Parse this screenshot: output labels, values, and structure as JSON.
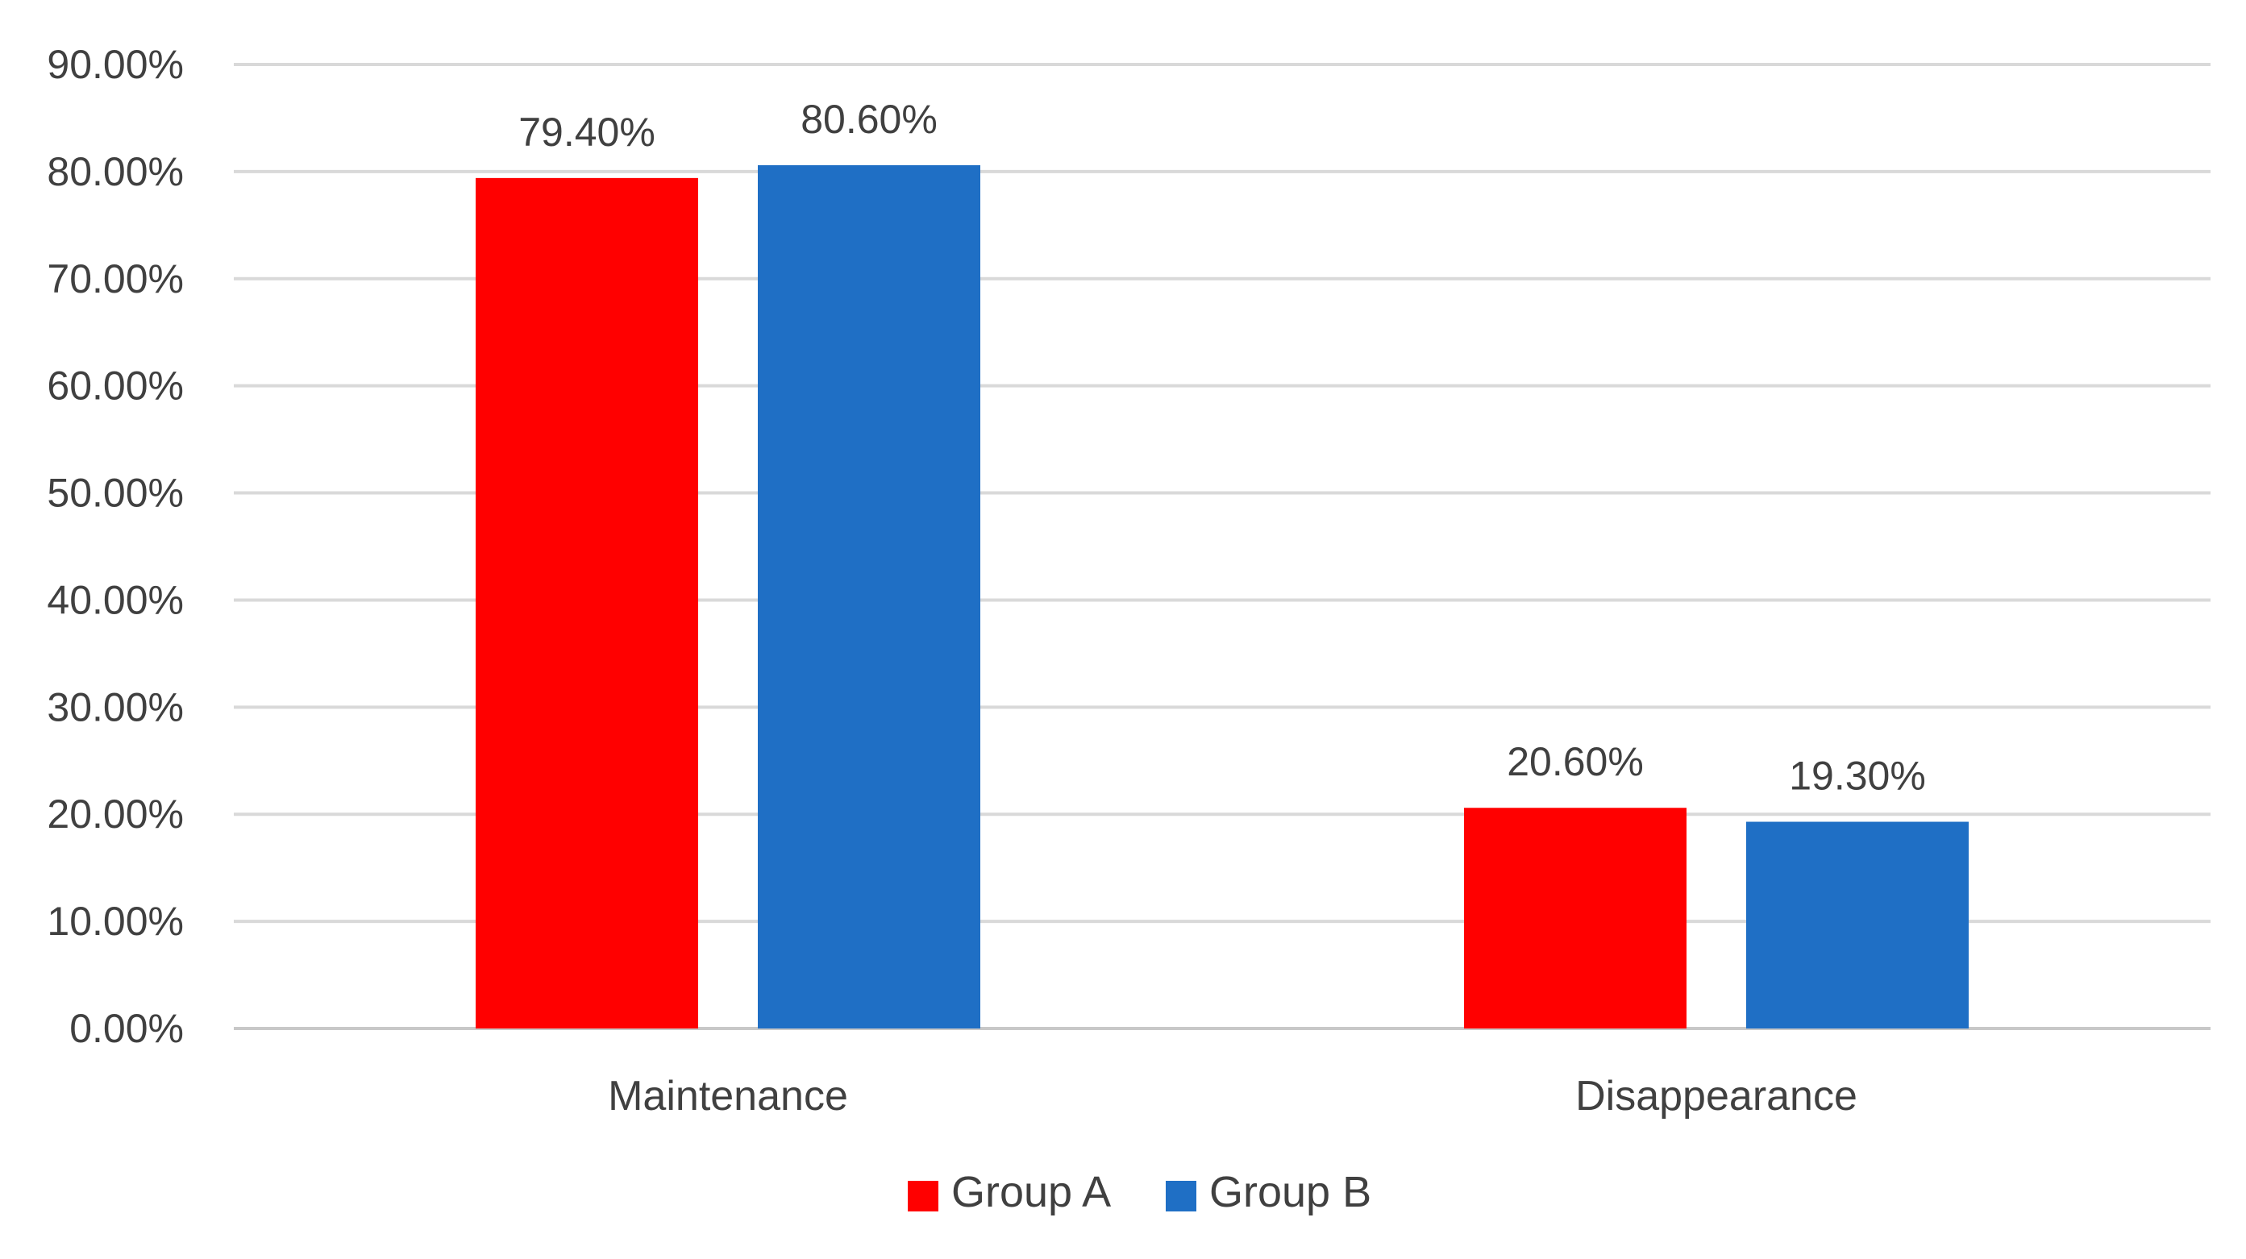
{
  "chart_data": {
    "type": "bar",
    "title": "",
    "xlabel": "",
    "ylabel": "",
    "categories": [
      "Maintenance",
      "Disappearance"
    ],
    "series": [
      {
        "name": "Group A",
        "color": "#ff0000",
        "values": [
          79.4,
          20.6
        ],
        "labels": [
          "79.40%",
          "20.60%"
        ]
      },
      {
        "name": "Group B",
        "color": "#1f6fc5",
        "values": [
          80.6,
          19.3
        ],
        "labels": [
          "80.60%",
          "19.30%"
        ]
      }
    ],
    "ylim": [
      0,
      90
    ],
    "yticks": [
      0,
      10,
      20,
      30,
      40,
      50,
      60,
      70,
      80,
      90
    ],
    "ytick_labels": [
      "0.00%",
      "10.00%",
      "20.00%",
      "30.00%",
      "40.00%",
      "50.00%",
      "60.00%",
      "70.00%",
      "80.00%",
      "90.00%"
    ],
    "grid": true,
    "legend": "bottom-center"
  }
}
